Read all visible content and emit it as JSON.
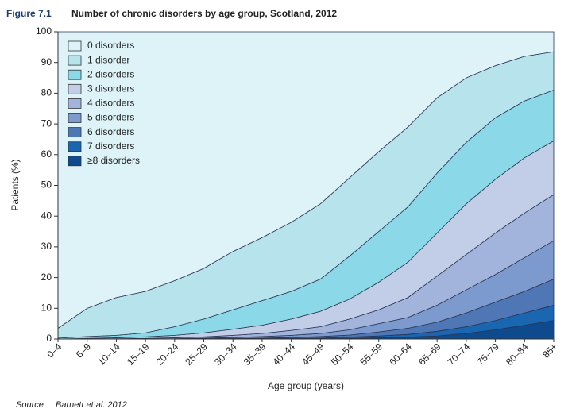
{
  "chart_data": {
    "type": "stacked_area",
    "figure_label": "Figure 7.1",
    "title": "Number of chronic disorders by age group, Scotland, 2012",
    "x_label": "Age group (years)",
    "y_label": "Patients (%)",
    "source_label": "Source",
    "source": "Barnett et al. 2012",
    "categories": [
      "0–4",
      "5–9",
      "10–14",
      "15–19",
      "20–24",
      "25–29",
      "30–34",
      "35–39",
      "40–44",
      "45–49",
      "50–54",
      "55–59",
      "60–64",
      "65–69",
      "70–74",
      "75–79",
      "80–84",
      "85+"
    ],
    "ylim": [
      0,
      100
    ],
    "yticks": [
      0,
      10,
      20,
      30,
      40,
      50,
      60,
      70,
      80,
      90,
      100
    ],
    "grid": false,
    "legend": "upper left",
    "series": [
      {
        "name": "0 disorders",
        "color": "#def3f8",
        "values": [
          96.5,
          90,
          86.5,
          84.5,
          81,
          77,
          71.5,
          67,
          62,
          56,
          47.5,
          39,
          31,
          21.5,
          15,
          11,
          8,
          6.5
        ]
      },
      {
        "name": "1 disorder",
        "color": "#b6e3ec",
        "values": [
          3.2,
          9.2,
          12.3,
          13.5,
          15,
          16.5,
          19,
          20.5,
          22.5,
          24.5,
          25.5,
          26,
          26,
          24.5,
          21,
          17,
          14.5,
          12.5
        ]
      },
      {
        "name": "2 disorders",
        "color": "#8bd9e8",
        "values": [
          0.3,
          0.6,
          0.8,
          1.3,
          2.8,
          4.5,
          6.3,
          8,
          9,
          10.5,
          14,
          16.5,
          18,
          19.5,
          20,
          20,
          18.5,
          16.5
        ]
      },
      {
        "name": "3 disorders",
        "color": "#c2cee7",
        "values": [
          0,
          0.2,
          0.3,
          0.5,
          0.8,
          1.3,
          2,
          2.7,
          3.7,
          5,
          6.5,
          9,
          11.5,
          14,
          16.5,
          17.5,
          18,
          17.5
        ]
      },
      {
        "name": "4 disorders",
        "color": "#a3b4dc",
        "values": [
          0,
          0,
          0.1,
          0.2,
          0.3,
          0.4,
          0.7,
          1,
          1.6,
          2.2,
          3.5,
          4.5,
          6.5,
          9.5,
          11.5,
          13.5,
          14.5,
          15
        ]
      },
      {
        "name": "5 disorders",
        "color": "#7c9acd",
        "values": [
          0,
          0,
          0,
          0,
          0.1,
          0.2,
          0.3,
          0.5,
          0.7,
          1,
          1.7,
          2.7,
          3.5,
          5.5,
          7.5,
          9,
          11,
          12.5
        ]
      },
      {
        "name": "6 disorders",
        "color": "#4f77b5",
        "values": [
          0,
          0,
          0,
          0,
          0,
          0.1,
          0.1,
          0.2,
          0.3,
          0.5,
          0.7,
          1.3,
          2,
          3,
          4.5,
          6,
          7,
          8.5
        ]
      },
      {
        "name": "7 disorders",
        "color": "#1a66b0",
        "values": [
          0,
          0,
          0,
          0,
          0,
          0,
          0.1,
          0.1,
          0.1,
          0.2,
          0.4,
          0.6,
          0.9,
          1.5,
          2.2,
          3,
          4,
          5
        ]
      },
      {
        "name": "≥8 disorders",
        "color": "#0d4a8e",
        "values": [
          0,
          0,
          0,
          0,
          0,
          0,
          0,
          0,
          0.1,
          0.1,
          0.2,
          0.4,
          0.6,
          1,
          1.8,
          3,
          4.5,
          6
        ]
      }
    ]
  }
}
